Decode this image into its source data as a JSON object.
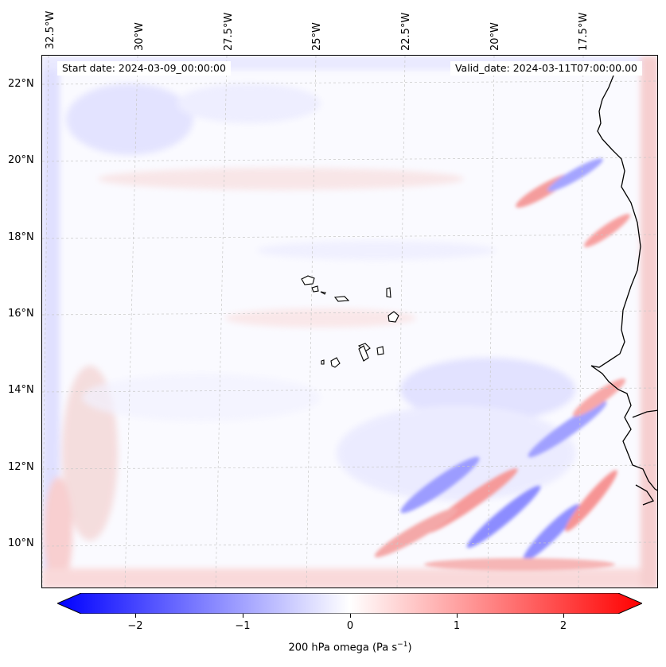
{
  "start_date": "Start date: 2024-03-09_00:00:00",
  "valid_date": "Valid_date: 2024-03-11T07:00:00.00",
  "lon_ticks": [
    "32.5°W",
    "30°W",
    "27.5°W",
    "25°W",
    "22.5°W",
    "20°W",
    "17.5°W"
  ],
  "lat_ticks": [
    "22°N",
    "20°N",
    "18°N",
    "16°N",
    "14°N",
    "12°N",
    "10°N"
  ],
  "colorbar": {
    "ticks": [
      "−2",
      "−1",
      "0",
      "1",
      "2"
    ],
    "label": "200 hPa omega (Pa s",
    "label_sup": "−1",
    "label_close": ")",
    "min_color": "#0000ff",
    "mid_color": "#ffffff",
    "max_color": "#ff0000"
  },
  "coastline_color": "#000000",
  "gridline_color": "#c8c8c8"
}
